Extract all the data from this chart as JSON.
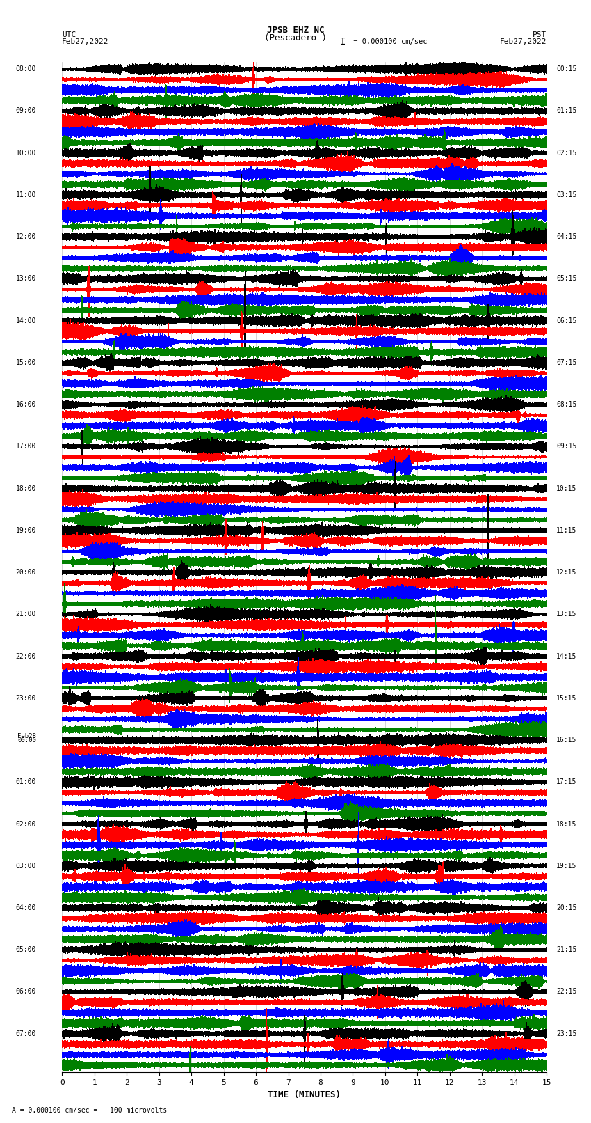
{
  "title_line1": "JPSB EHZ NC",
  "title_line2": "(Pescadero )",
  "scale_text": "I = 0.000100 cm/sec",
  "left_label_top": "UTC",
  "left_label_date": "Feb27,2022",
  "right_label_top": "PST",
  "right_label_date": "Feb27,2022",
  "xlabel": "TIME (MINUTES)",
  "bottom_note": "A = 0.000100 cm/sec =   100 microvolts",
  "utc_times": [
    "08:00",
    "09:00",
    "10:00",
    "11:00",
    "12:00",
    "13:00",
    "14:00",
    "15:00",
    "16:00",
    "17:00",
    "18:00",
    "19:00",
    "20:00",
    "21:00",
    "22:00",
    "23:00",
    "Feb28\n00:00",
    "01:00",
    "02:00",
    "03:00",
    "04:00",
    "05:00",
    "06:00",
    "07:00"
  ],
  "pst_times": [
    "00:15",
    "01:15",
    "02:15",
    "03:15",
    "04:15",
    "05:15",
    "06:15",
    "07:15",
    "08:15",
    "09:15",
    "10:15",
    "11:15",
    "12:15",
    "13:15",
    "14:15",
    "15:15",
    "16:15",
    "17:15",
    "18:15",
    "19:15",
    "20:15",
    "21:15",
    "22:15",
    "23:15"
  ],
  "colors": [
    "black",
    "red",
    "blue",
    "green"
  ],
  "n_hours": 24,
  "traces_per_hour": 4,
  "minutes": 15,
  "figsize": [
    8.5,
    16.13
  ],
  "dpi": 100,
  "grid_color": "#aaaaaa",
  "bg_color": "white"
}
